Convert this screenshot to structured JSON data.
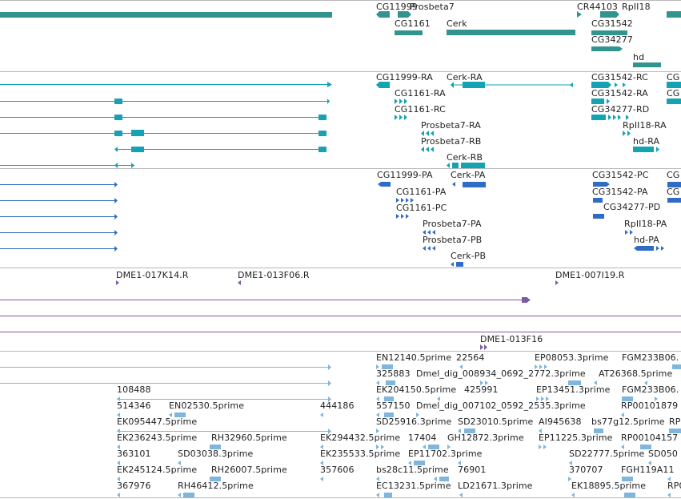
{
  "colors": {
    "gene": "#33948f",
    "transcript": "#14a3b3",
    "protein": "#2f6cc6",
    "clone": "#7d5aa8",
    "est": "#80b6dc",
    "divider": "#b8b8b8"
  },
  "tracks": {
    "genes": {
      "labels": [
        "CG11999",
        "Prosbeta7",
        "CR44103",
        "RpII18",
        "CG1161",
        "Cerk",
        "CG31542",
        "CG34277",
        "hd"
      ]
    },
    "transcripts": {
      "labels": [
        "CG11999-RA",
        "Cerk-RA",
        "CG31542-RC",
        "CG",
        "CG1161-RA",
        "CG31542-RA",
        "CG",
        "CG1161-RC",
        "CG34277-RD",
        "Prosbeta7-RA",
        "RpII18-RA",
        "Prosbeta7-RB",
        "hd-RA",
        "Cerk-RB"
      ]
    },
    "proteins": {
      "labels": [
        "CG11999-PA",
        "Cerk-PA",
        "CG31542-PC",
        "CG",
        "CG1161-PA",
        "CG31542-PA",
        "CG",
        "CG1161-PC",
        "CG34277-PD",
        "Prosbeta7-PA",
        "RpII18-PA",
        "Prosbeta7-PB",
        "hd-PA",
        "Cerk-PB"
      ]
    },
    "clones": {
      "labels": [
        "DME1-017K14.R",
        "DME1-013F06.R",
        "DME1-007I19.R",
        "DME1-013F16"
      ]
    },
    "ests": {
      "labels": [
        "EN12140.5prime",
        "22564",
        "EP08053.3prime",
        "FGM233B06.",
        "325883",
        "Dmel_dig_008934_0692_2772.3prime",
        "AT26368.5prime",
        "108488",
        "EK204150.5prime",
        "425991",
        "EP13451.3prime",
        "FGM233B06.",
        "514346",
        "EN02530.5prime",
        "444186",
        "557150",
        "Dmel_dig_007102_0592_2535.3prime",
        "RP00101879",
        "EK095447.5prime",
        "SD25916.3prime",
        "SD23010.5prime",
        "AI945638",
        "bs77g12.5prime",
        "RP",
        "EK236243.5prime",
        "RH32960.5prime",
        "EK294432.5prime",
        "17404",
        "GH12872.3prime",
        "EP11225.3prime",
        "RP00104157",
        "363101",
        "SD03038.3prime",
        "EK235533.5prime",
        "EP11702.3prime",
        "SD22777.5prime",
        "SD050",
        "EK245124.5prime",
        "RH26007.5prime",
        "357606",
        "bs28c11.5prime",
        "76901",
        "370707",
        "FGH119A11",
        "367976",
        "RH46412.5prime",
        "EC13231.5prime",
        "LD21671.3prime",
        "EK18895.5prime",
        "RP0"
      ]
    }
  }
}
